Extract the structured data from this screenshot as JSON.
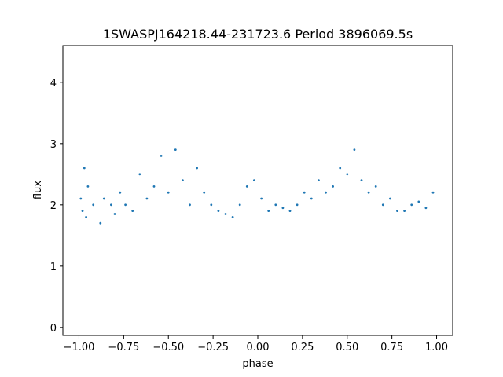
{
  "chart_data": {
    "type": "scatter",
    "title": "1SWASPJ164218.44-231723.6 Period 3896069.5s",
    "xlabel": "phase",
    "ylabel": "flux",
    "xlim": [
      -1.09,
      1.09
    ],
    "ylim": [
      -0.13,
      4.6
    ],
    "xticks": [
      -1.0,
      -0.75,
      -0.5,
      -0.25,
      0.0,
      0.25,
      0.5,
      0.75,
      1.0
    ],
    "xtick_labels": [
      "−1.00",
      "−0.75",
      "−0.50",
      "−0.25",
      "0.00",
      "0.25",
      "0.50",
      "0.75",
      "1.00"
    ],
    "yticks": [
      0,
      1,
      2,
      3,
      4
    ],
    "ytick_labels": [
      "0",
      "1",
      "2",
      "3",
      "4"
    ],
    "grid": false,
    "marker_color": "#1f77b4",
    "series": [
      {
        "name": "",
        "points": [
          [
            -0.99,
            2.1
          ],
          [
            -0.98,
            1.9
          ],
          [
            -0.97,
            2.6
          ],
          [
            -0.96,
            1.8
          ],
          [
            -0.95,
            2.3
          ],
          [
            -0.92,
            2.0
          ],
          [
            -0.88,
            1.7
          ],
          [
            -0.86,
            2.1
          ],
          [
            -0.82,
            2.0
          ],
          [
            -0.8,
            1.85
          ],
          [
            -0.77,
            2.2
          ],
          [
            -0.74,
            2.0
          ],
          [
            -0.7,
            1.9
          ],
          [
            -0.66,
            2.5
          ],
          [
            -0.62,
            2.1
          ],
          [
            -0.58,
            2.3
          ],
          [
            -0.54,
            2.8
          ],
          [
            -0.5,
            2.2
          ],
          [
            -0.46,
            2.9
          ],
          [
            -0.42,
            2.4
          ],
          [
            -0.38,
            2.0
          ],
          [
            -0.34,
            2.6
          ],
          [
            -0.3,
            2.2
          ],
          [
            -0.26,
            2.0
          ],
          [
            -0.22,
            1.9
          ],
          [
            -0.18,
            1.85
          ],
          [
            -0.14,
            1.8
          ],
          [
            -0.1,
            2.0
          ],
          [
            -0.06,
            2.3
          ],
          [
            -0.02,
            2.4
          ],
          [
            0.02,
            2.1
          ],
          [
            0.06,
            1.9
          ],
          [
            0.1,
            2.0
          ],
          [
            0.14,
            1.95
          ],
          [
            0.18,
            1.9
          ],
          [
            0.22,
            2.0
          ],
          [
            0.26,
            2.2
          ],
          [
            0.3,
            2.1
          ],
          [
            0.34,
            2.4
          ],
          [
            0.38,
            2.2
          ],
          [
            0.42,
            2.3
          ],
          [
            0.46,
            2.6
          ],
          [
            0.5,
            2.5
          ],
          [
            0.54,
            2.9
          ],
          [
            0.58,
            2.4
          ],
          [
            0.62,
            2.2
          ],
          [
            0.66,
            2.3
          ],
          [
            0.7,
            2.0
          ],
          [
            0.74,
            2.1
          ],
          [
            0.78,
            1.9
          ],
          [
            0.82,
            1.9
          ],
          [
            0.86,
            2.0
          ],
          [
            0.9,
            2.05
          ],
          [
            0.94,
            1.95
          ],
          [
            0.98,
            2.2
          ]
        ]
      }
    ]
  }
}
